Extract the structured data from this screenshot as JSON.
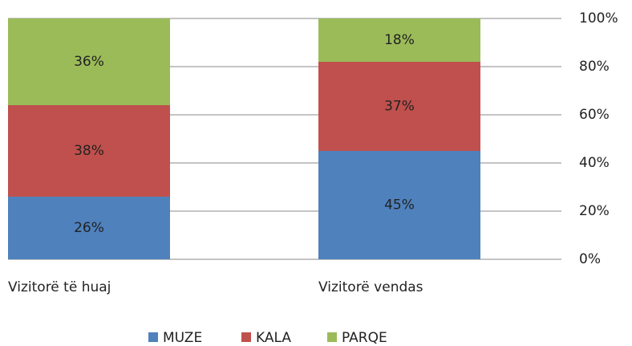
{
  "chart_data": {
    "type": "stacked_bar",
    "categories": [
      "Vizitorë të huaj",
      "Vizitorë vendas"
    ],
    "series": [
      {
        "name": "MUZE",
        "color": "#4f81bd",
        "values": [
          26,
          45
        ],
        "value_labels": [
          "26%",
          "45%"
        ]
      },
      {
        "name": "KALA",
        "color": "#c0504d",
        "values": [
          38,
          37
        ],
        "value_labels": [
          "38%",
          "37%"
        ]
      },
      {
        "name": "PARQE",
        "color": "#9bbb59",
        "values": [
          36,
          18
        ],
        "value_labels": [
          "36%",
          "18%"
        ]
      }
    ],
    "ylim": [
      0,
      100
    ],
    "yticks": [
      {
        "value": 0,
        "label": "0%"
      },
      {
        "value": 20,
        "label": "20%"
      },
      {
        "value": 40,
        "label": "40%"
      },
      {
        "value": 60,
        "label": "60%"
      },
      {
        "value": 80,
        "label": "80%"
      },
      {
        "value": 100,
        "label": "100%"
      }
    ],
    "grid": true,
    "y_axis_side": "right",
    "legend": "bottom"
  }
}
